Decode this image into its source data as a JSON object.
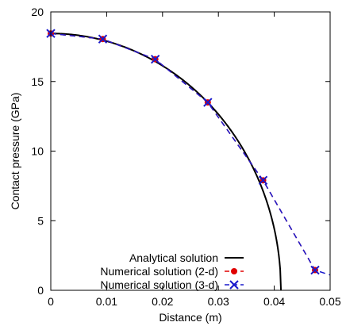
{
  "chart_data": {
    "type": "line",
    "xlabel": "Distance (m)",
    "ylabel": "Contact pressure (GPa)",
    "xlim": [
      0,
      0.05
    ],
    "ylim": [
      0,
      20
    ],
    "x_ticks": [
      "0",
      "0.01",
      "0.02",
      "0.03",
      "0.04",
      "0.05"
    ],
    "y_ticks": [
      "0",
      "5",
      "10",
      "15",
      "20"
    ],
    "grid": false,
    "legend_position": "bottom-right",
    "series": [
      {
        "name": "Analytical solution",
        "style": "solid-line",
        "color": "#000000",
        "a": 0.0412,
        "p0": 18.45
      },
      {
        "name": "Numerical solution (2-d)",
        "style": "dashed-line-circle-markers",
        "color": "#e00000",
        "x": [
          0.0,
          0.0093,
          0.0187,
          0.0281,
          0.038,
          0.0473
        ],
        "y": [
          18.45,
          18.05,
          16.6,
          13.5,
          7.9,
          1.45
        ]
      },
      {
        "name": "Numerical solution (3-d)",
        "style": "dashed-line-x-markers",
        "color": "#1a1acc",
        "x": [
          0.0,
          0.0093,
          0.0187,
          0.0281,
          0.038,
          0.0473,
          0.05
        ],
        "y": [
          18.45,
          18.05,
          16.6,
          13.5,
          7.9,
          1.45,
          1.1
        ]
      }
    ]
  }
}
